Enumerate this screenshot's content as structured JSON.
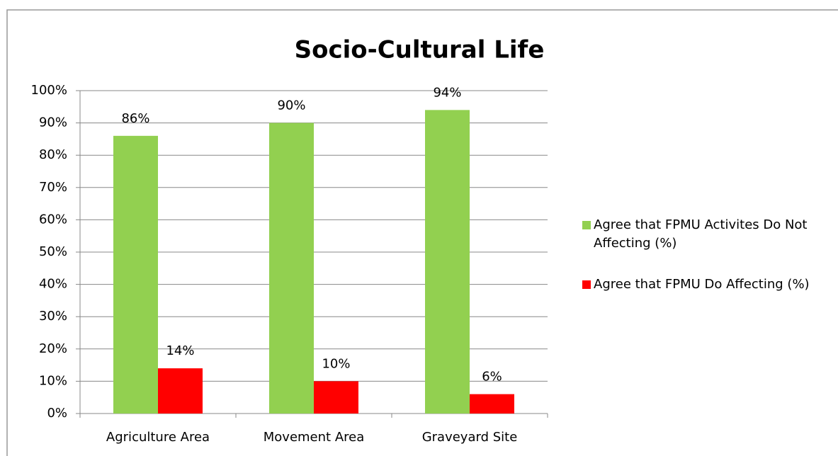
{
  "chart_data": {
    "type": "bar",
    "title": "Socio-Cultural Life",
    "categories": [
      "Agriculture Area",
      "Movement Area",
      "Graveyard Site"
    ],
    "series": [
      {
        "name": "Agree that FPMU Activites Do Not Affecting (%)",
        "color": "#92d050",
        "values": [
          86,
          90,
          94
        ],
        "value_labels": [
          "86%",
          "90%",
          "94%"
        ]
      },
      {
        "name": "Agree that FPMU Do Affecting (%)",
        "color": "#ff0000",
        "values": [
          14,
          10,
          6
        ],
        "value_labels": [
          "14%",
          "10%",
          "6%"
        ]
      }
    ],
    "ylim": [
      0,
      100
    ],
    "yticks": [
      {
        "value": 0,
        "label": "0%"
      },
      {
        "value": 10,
        "label": "10%"
      },
      {
        "value": 20,
        "label": "20%"
      },
      {
        "value": 30,
        "label": "30%"
      },
      {
        "value": 40,
        "label": "40%"
      },
      {
        "value": 50,
        "label": "50%"
      },
      {
        "value": 60,
        "label": "60%"
      },
      {
        "value": 70,
        "label": "70%"
      },
      {
        "value": 80,
        "label": "80%"
      },
      {
        "value": 90,
        "label": "90%"
      },
      {
        "value": 100,
        "label": "100%"
      }
    ],
    "grid": true,
    "legend": "right"
  }
}
